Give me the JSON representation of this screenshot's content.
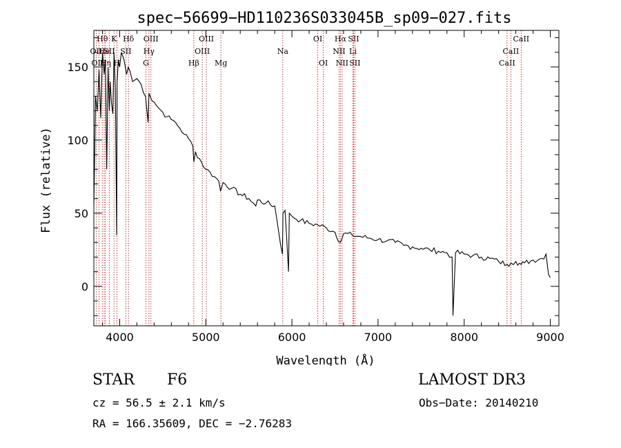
{
  "chart_data": {
    "type": "line",
    "title": "spec−56699−HD110236S033045B_sp09−027.fits",
    "xlabel": "Wavelength (Å)",
    "ylabel": "Flux (relative)",
    "xlim": [
      3700,
      9100
    ],
    "ylim": [
      -27,
      175
    ],
    "xticks": [
      4000,
      5000,
      6000,
      7000,
      8000,
      9000
    ],
    "yticks": [
      0,
      50,
      100,
      150
    ],
    "series": [
      {
        "name": "flux",
        "x": [
          3700,
          3720,
          3740,
          3760,
          3780,
          3800,
          3820,
          3835,
          3850,
          3865,
          3880,
          3890,
          3905,
          3920,
          3935,
          3950,
          3965,
          3970,
          3985,
          4000,
          4020,
          4050,
          4080,
          4100,
          4120,
          4150,
          4200,
          4250,
          4300,
          4330,
          4340,
          4360,
          4400,
          4450,
          4500,
          4550,
          4600,
          4650,
          4700,
          4750,
          4800,
          4850,
          4861,
          4880,
          4950,
          5000,
          5050,
          5100,
          5150,
          5172,
          5200,
          5300,
          5400,
          5500,
          5580,
          5600,
          5700,
          5800,
          5890,
          5896,
          5920,
          5960,
          5970,
          6000,
          6100,
          6200,
          6300,
          6400,
          6500,
          6563,
          6600,
          6700,
          6800,
          6900,
          7000,
          7100,
          7200,
          7300,
          7400,
          7500,
          7600,
          7700,
          7800,
          7860,
          7870,
          7900,
          8000,
          8100,
          8200,
          8300,
          8400,
          8498,
          8542,
          8600,
          8662,
          8700,
          8800,
          8900,
          8950,
          8980,
          9000
        ],
        "y": [
          55,
          130,
          120,
          148,
          115,
          160,
          145,
          155,
          80,
          150,
          120,
          140,
          125,
          118,
          160,
          135,
          35,
          140,
          155,
          150,
          160,
          155,
          145,
          150,
          147,
          140,
          142,
          138,
          130,
          112,
          132,
          129,
          126,
          122,
          119,
          116,
          114,
          112,
          108,
          104,
          101,
          96,
          85,
          92,
          85,
          80,
          78,
          75,
          72,
          65,
          71,
          67,
          63,
          60,
          55,
          59,
          57,
          55,
          22,
          50,
          52,
          10,
          50,
          48,
          45,
          43,
          42,
          40,
          37,
          30,
          36,
          35,
          34,
          33,
          32,
          31,
          30,
          28,
          27,
          26,
          25,
          24,
          23,
          20,
          -20,
          23,
          22,
          21,
          20,
          19,
          17,
          15,
          16,
          17,
          15,
          16,
          18,
          19,
          22,
          8,
          6
        ]
      }
    ],
    "lines": [
      {
        "label": "Hθ",
        "x": 3798,
        "row": 0
      },
      {
        "label": "OII",
        "x": 3727,
        "row": 1
      },
      {
        "label": "OIII",
        "x": 3760,
        "row": 2
      },
      {
        "label": "He",
        "x": 3820,
        "row": 1
      },
      {
        "label": "Hη",
        "x": 3835,
        "row": 2
      },
      {
        "label": "K",
        "x": 3934,
        "row": 0
      },
      {
        "label": "SII",
        "x": 3880,
        "row": 1
      },
      {
        "label": "H",
        "x": 3968,
        "row": 2
      },
      {
        "label": "Hδ",
        "x": 4102,
        "row": 0
      },
      {
        "label": "SII",
        "x": 4071,
        "row": 1
      },
      {
        "label": "OIII",
        "x": 4363,
        "row": 0
      },
      {
        "label": "Hγ",
        "x": 4340,
        "row": 1
      },
      {
        "label": "G",
        "x": 4305,
        "row": 2
      },
      {
        "label": "Hβ",
        "x": 4861,
        "row": 2
      },
      {
        "label": "OIII",
        "x": 5007,
        "row": 0
      },
      {
        "label": "OIII",
        "x": 4959,
        "row": 1
      },
      {
        "label": "Mg",
        "x": 5175,
        "row": 2
      },
      {
        "label": "Na",
        "x": 5894,
        "row": 1
      },
      {
        "label": "OI",
        "x": 6300,
        "row": 0
      },
      {
        "label": "OI",
        "x": 6364,
        "row": 2
      },
      {
        "label": "Hα",
        "x": 6563,
        "row": 0
      },
      {
        "label": "NII",
        "x": 6548,
        "row": 1
      },
      {
        "label": "NII",
        "x": 6583,
        "row": 2
      },
      {
        "label": "SII",
        "x": 6716,
        "row": 0
      },
      {
        "label": "Li",
        "x": 6708,
        "row": 1
      },
      {
        "label": "SII",
        "x": 6731,
        "row": 2
      },
      {
        "label": "CaII",
        "x": 8662,
        "row": 0
      },
      {
        "label": "CaII",
        "x": 8542,
        "row": 1
      },
      {
        "label": "CaII",
        "x": 8498,
        "row": 2
      }
    ]
  },
  "info": {
    "object_class": "STAR",
    "subclass": "F6",
    "survey": "LAMOST DR3",
    "redshift": "cz = 56.5 ± 2.1 km/s",
    "obs_date": "Obs−Date: 20140210",
    "coordinates": "RA = 166.35609, DEC =  −2.76283"
  },
  "colors": {
    "spectrum": "#000000",
    "line_marker": "#c00000",
    "axes": "#000000"
  }
}
